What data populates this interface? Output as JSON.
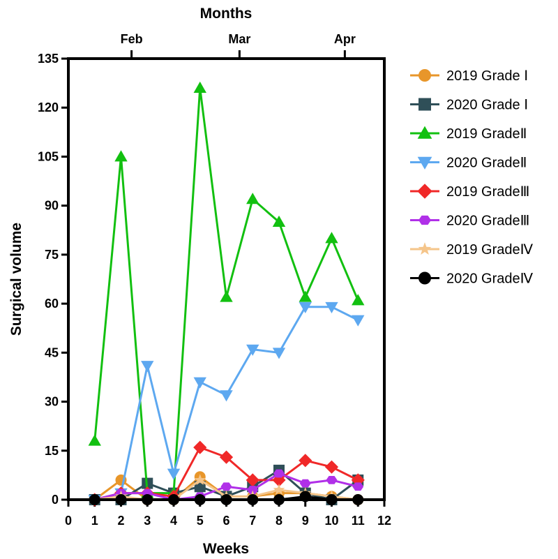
{
  "chart_data": {
    "type": "line",
    "xlabel": "Weeks",
    "ylabel": "Surgical volume",
    "top_axis_label": "Months",
    "xlim": [
      0,
      12
    ],
    "ylim": [
      0,
      135
    ],
    "x_ticks": [
      0,
      1,
      2,
      3,
      4,
      5,
      6,
      7,
      8,
      9,
      10,
      11,
      12
    ],
    "y_ticks": [
      0,
      15,
      30,
      45,
      60,
      75,
      90,
      105,
      120,
      135
    ],
    "top_ticks": [
      {
        "label": "Feb",
        "x": 2.4
      },
      {
        "label": "Mar",
        "x": 6.5
      },
      {
        "label": "Apr",
        "x": 10.5
      }
    ],
    "x": [
      1,
      2,
      3,
      4,
      5,
      6,
      7,
      8,
      9,
      10,
      11
    ],
    "series": [
      {
        "name": "2019 Grade Ⅰ",
        "color": "#E8962A",
        "marker": "circle",
        "values": [
          0,
          6,
          0,
          0,
          7,
          1,
          1,
          2,
          2,
          1,
          0
        ]
      },
      {
        "name": "2020 Grade Ⅰ",
        "color": "#2F4F58",
        "marker": "square",
        "values": [
          0,
          0,
          5,
          2,
          4,
          1,
          4,
          9,
          2,
          0,
          6
        ]
      },
      {
        "name": "2019 GradeⅡ",
        "color": "#12C010",
        "marker": "triangle-up",
        "values": [
          18,
          105,
          2,
          2,
          126,
          62,
          92,
          85,
          62,
          80,
          61
        ]
      },
      {
        "name": "2020 GradeⅡ",
        "color": "#5DA8F0",
        "marker": "triangle-down",
        "values": [
          0,
          2,
          41,
          8,
          36,
          32,
          46,
          45,
          59,
          59,
          55
        ]
      },
      {
        "name": "2019 GradeⅢ",
        "color": "#F02828",
        "marker": "diamond",
        "values": [
          0,
          2,
          2,
          1,
          16,
          13,
          6,
          6,
          12,
          10,
          6
        ]
      },
      {
        "name": "2020 GradeⅢ",
        "color": "#B030E8",
        "marker": "hexagon",
        "values": [
          0,
          2,
          2,
          0,
          1,
          4,
          3,
          8,
          5,
          6,
          4
        ]
      },
      {
        "name": "2019 GradeⅣ",
        "color": "#F5C58A",
        "marker": "star",
        "values": [
          0,
          1,
          0,
          0,
          6,
          1,
          1,
          3,
          2,
          1,
          0
        ]
      },
      {
        "name": "2020 GradeⅣ",
        "color": "#000000",
        "marker": "circle",
        "values": [
          0,
          0,
          0,
          0,
          0,
          0,
          0,
          0,
          1,
          0,
          0
        ]
      }
    ],
    "grid": false,
    "legend_position": "right"
  }
}
